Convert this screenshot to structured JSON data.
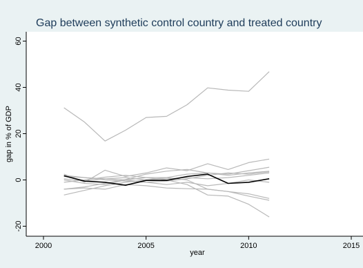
{
  "chart_data": {
    "type": "line",
    "title": "Gap between synthetic control country and treated country",
    "xlabel": "year",
    "ylabel": "gap in % of GDP",
    "xlim": [
      2000,
      2015
    ],
    "ylim": [
      -22,
      62
    ],
    "x_ticks": [
      2000,
      2005,
      2010,
      2015
    ],
    "y_ticks": [
      -20,
      0,
      20,
      40,
      60
    ],
    "grid": false,
    "legend": "none",
    "colors": {
      "background": "#eaf2f3",
      "plot_area": "#ffffff",
      "placebo": "#b8b8b8",
      "treated": "#000000",
      "title": "#1e3c5a"
    },
    "x": [
      2001,
      2002,
      2003,
      2004,
      2005,
      2006,
      2007,
      2008,
      2009,
      2010,
      2011
    ],
    "series": [
      {
        "role": "placebo",
        "values": [
          31.2,
          25,
          16.8,
          21.5,
          27,
          27.5,
          32.5,
          39.8,
          38.8,
          38.3,
          46.8
        ]
      },
      {
        "role": "placebo",
        "values": [
          2.5,
          -1,
          4.2,
          1.5,
          3,
          5.2,
          4,
          7,
          4.5,
          7.5,
          9
        ]
      },
      {
        "role": "placebo",
        "values": [
          -4,
          -3,
          -1.5,
          0.2,
          2.5,
          3.8,
          4.5,
          3,
          2.5,
          4,
          5.5
        ]
      },
      {
        "role": "placebo",
        "values": [
          -6.5,
          -4.5,
          -2.5,
          -1,
          0,
          1,
          2.5,
          3,
          2,
          3,
          3.8
        ]
      },
      {
        "role": "placebo",
        "values": [
          0.5,
          -0.5,
          0.5,
          1,
          0,
          0.5,
          1,
          0.5,
          1,
          2,
          3
        ]
      },
      {
        "role": "placebo",
        "values": [
          2,
          1,
          0,
          -0.5,
          -1,
          -2,
          -1,
          -2.5,
          -1.5,
          0,
          -1
        ]
      },
      {
        "role": "placebo",
        "values": [
          -1,
          0,
          1.2,
          2,
          1,
          0,
          -2,
          -6.5,
          -7,
          -10.5,
          -16
        ]
      },
      {
        "role": "placebo",
        "values": [
          -4,
          -3.5,
          -4,
          -2,
          -2.5,
          -3.5,
          -3.8,
          -4,
          -5,
          -6,
          -8
        ]
      },
      {
        "role": "placebo",
        "values": [
          0,
          -1.5,
          -2,
          0,
          1,
          1,
          0,
          -4,
          -5,
          -7,
          -8.8
        ]
      },
      {
        "role": "placebo",
        "values": [
          1.5,
          1,
          0.5,
          0,
          -1,
          -0.5,
          0.5,
          2,
          3,
          2.5,
          3.5
        ]
      },
      {
        "role": "treated",
        "values": [
          1.8,
          -0.5,
          -1,
          -2.3,
          -0.2,
          -0.2,
          1.5,
          2.5,
          -1.5,
          -1,
          0.5
        ]
      }
    ]
  }
}
